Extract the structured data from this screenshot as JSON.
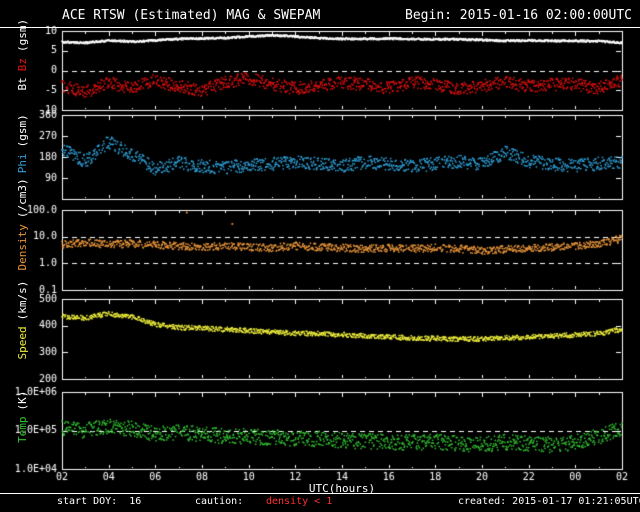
{
  "header": {
    "title": "ACE RTSW (Estimated) MAG & SWEPAM",
    "begin": "Begin: 2015-01-16 02:00:00UTC"
  },
  "footer": {
    "start_doy": "start DOY:  16",
    "caution_label": "caution:",
    "density_warning": "density < 1",
    "created": "created: 2015-01-17 01:21:05UTC"
  },
  "x_axis": {
    "label": "UTC(hours)",
    "tick_labels": [
      "02",
      "04",
      "06",
      "08",
      "10",
      "12",
      "14",
      "16",
      "18",
      "20",
      "22",
      "00",
      "02"
    ],
    "start_hour": 2,
    "end_hour": 26,
    "tick_step_hours": 2
  },
  "colors": {
    "background": "#000000",
    "foreground": "#ffffff",
    "warning_red": "#ff3030"
  },
  "chart_data": [
    {
      "type": "scatter",
      "panel": "magnetic-field",
      "ylabel": "Bt Bz (gsm)",
      "unit": "(gsm)",
      "scale": "linear",
      "yrange": [
        -10,
        10
      ],
      "yticks": [
        10,
        5,
        0,
        -5,
        -10
      ],
      "ytick_labels": [
        "10",
        "5",
        "0",
        "-5",
        "-10"
      ],
      "dashed_lines": [
        0
      ],
      "x_start_hour": 2,
      "x_end_hour": 26,
      "anchor_step_hours": 1,
      "series": [
        {
          "name": "Bt",
          "color": "#ffffff",
          "dense": true,
          "noise": 0.25,
          "values": [
            7.2,
            7.0,
            7.6,
            7.3,
            7.6,
            8.0,
            8.1,
            8.2,
            8.6,
            8.9,
            8.6,
            8.2,
            8.0,
            8.0,
            8.1,
            8.0,
            7.9,
            7.9,
            7.7,
            7.5,
            7.6,
            7.5,
            7.5,
            7.4,
            7.0
          ]
        },
        {
          "name": "Bz",
          "color": "#e01010",
          "noise": 1.6,
          "values": [
            -4.0,
            -5.5,
            -3.0,
            -4.5,
            -2.5,
            -4.0,
            -5.0,
            -3.0,
            -2.0,
            -3.5,
            -4.5,
            -4.0,
            -3.0,
            -3.5,
            -4.5,
            -3.0,
            -3.5,
            -4.5,
            -4.0,
            -3.0,
            -4.0,
            -3.5,
            -3.5,
            -4.5,
            -2.5
          ]
        }
      ]
    },
    {
      "type": "scatter",
      "panel": "phi-angle",
      "ylabel": "Phi (gsm)",
      "unit": "(gsm)",
      "scale": "linear",
      "yrange": [
        0,
        360
      ],
      "yticks": [
        360,
        270,
        180,
        90
      ],
      "ytick_labels": [
        "360",
        "270",
        "180",
        "90"
      ],
      "dashed_lines": [],
      "x_start_hour": 2,
      "x_end_hour": 26,
      "anchor_step_hours": 1,
      "series": [
        {
          "name": "Phi",
          "color": "#2f9fd6",
          "noise": 28,
          "values": [
            215,
            160,
            245,
            190,
            130,
            155,
            140,
            135,
            145,
            150,
            160,
            150,
            140,
            158,
            150,
            140,
            150,
            162,
            150,
            200,
            162,
            150,
            142,
            152,
            160
          ]
        }
      ]
    },
    {
      "type": "scatter",
      "panel": "density",
      "ylabel": "Density (/cm3)",
      "unit": "(/cm3)",
      "scale": "log",
      "yrange": [
        0.1,
        100
      ],
      "yticks": [
        100,
        10,
        1,
        0.1
      ],
      "ytick_labels": [
        "100.0",
        "10.0",
        "1.0",
        "0.1"
      ],
      "dashed_lines": [
        10,
        1
      ],
      "x_start_hour": 2,
      "x_end_hour": 26,
      "anchor_step_hours": 1,
      "outliers": [
        [
          7.35,
          80
        ],
        [
          9.3,
          30
        ]
      ],
      "series": [
        {
          "name": "Density",
          "color": "#e8953a",
          "noise": 0.14,
          "values": [
            5.0,
            6.0,
            5.0,
            5.5,
            5.0,
            4.5,
            4.0,
            4.5,
            4.0,
            3.8,
            4.5,
            4.0,
            3.8,
            3.5,
            3.8,
            3.5,
            3.8,
            3.5,
            3.0,
            3.3,
            3.8,
            4.0,
            4.5,
            5.5,
            8.5
          ]
        }
      ]
    },
    {
      "type": "scatter",
      "panel": "speed",
      "ylabel": "Speed (km/s)",
      "unit": "(km/s)",
      "scale": "linear",
      "yrange": [
        200,
        500
      ],
      "yticks": [
        500,
        400,
        300,
        200
      ],
      "ytick_labels": [
        "500",
        "400",
        "300",
        "200"
      ],
      "dashed_lines": [],
      "x_start_hour": 2,
      "x_end_hour": 26,
      "anchor_step_hours": 1,
      "series": [
        {
          "name": "Speed",
          "color": "#eeee3c",
          "noise": 9,
          "values": [
            435,
            428,
            445,
            432,
            405,
            393,
            390,
            386,
            381,
            376,
            372,
            370,
            366,
            361,
            357,
            354,
            352,
            350,
            350,
            354,
            358,
            361,
            365,
            371,
            386
          ]
        }
      ]
    },
    {
      "type": "scatter",
      "panel": "temperature",
      "ylabel": "Temp (K)",
      "unit": "(K)",
      "scale": "log",
      "yrange": [
        10000,
        1000000
      ],
      "yticks": [
        1000000,
        100000,
        10000
      ],
      "ytick_labels": [
        "1.0E+06",
        "1.0E+05",
        "1.0E+04"
      ],
      "dashed_lines": [
        100000
      ],
      "x_start_hour": 2,
      "x_end_hour": 26,
      "anchor_step_hours": 1,
      "series": [
        {
          "name": "Temp",
          "color": "#32c032",
          "noise": 0.2,
          "values": [
            120000,
            100000,
            130000,
            110000,
            80000,
            90000,
            80000,
            72000,
            70000,
            65000,
            62000,
            60000,
            56000,
            52000,
            50000,
            48000,
            50000,
            46000,
            42000,
            50000,
            46000,
            42000,
            50000,
            70000,
            110000
          ]
        }
      ]
    }
  ]
}
